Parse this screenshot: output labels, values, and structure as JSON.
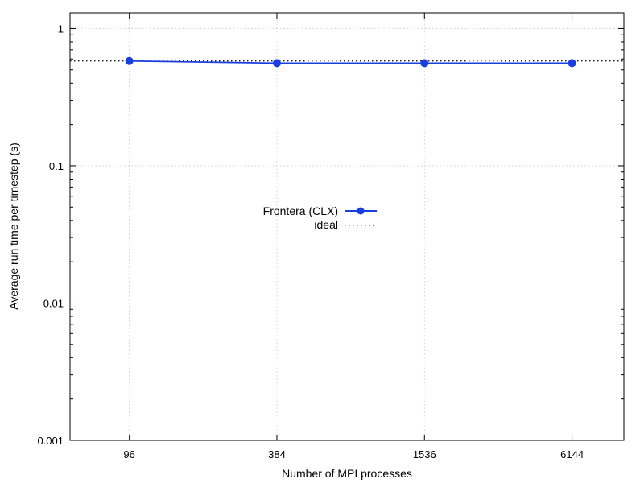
{
  "chart_data": {
    "type": "line",
    "xlabel": "Number of MPI processes",
    "ylabel": "Average run time per timestep (s)",
    "x_scale": "log",
    "y_scale": "log",
    "xlim": [
      55,
      10000
    ],
    "ylim": [
      0.001,
      1.3
    ],
    "x_ticks": [
      {
        "value": 96,
        "label": "96"
      },
      {
        "value": 384,
        "label": "384"
      },
      {
        "value": 1536,
        "label": "1536"
      },
      {
        "value": 6144,
        "label": "6144"
      }
    ],
    "y_ticks": [
      {
        "value": 1,
        "label": "1"
      },
      {
        "value": 0.1,
        "label": "0.1"
      },
      {
        "value": 0.01,
        "label": "0.01"
      },
      {
        "value": 0.001,
        "label": "0.001"
      }
    ],
    "grid": true,
    "legend_position": "center",
    "series": [
      {
        "name": "Frontera (CLX)",
        "color": "#1a3fe0",
        "marker": "circle",
        "x": [
          96,
          384,
          1536,
          6144
        ],
        "y": [
          0.58,
          0.56,
          0.56,
          0.56
        ]
      },
      {
        "name": "ideal",
        "color": "#000000",
        "style": "dotted",
        "x": [
          55,
          10000
        ],
        "y": [
          0.58,
          0.58
        ]
      }
    ]
  }
}
